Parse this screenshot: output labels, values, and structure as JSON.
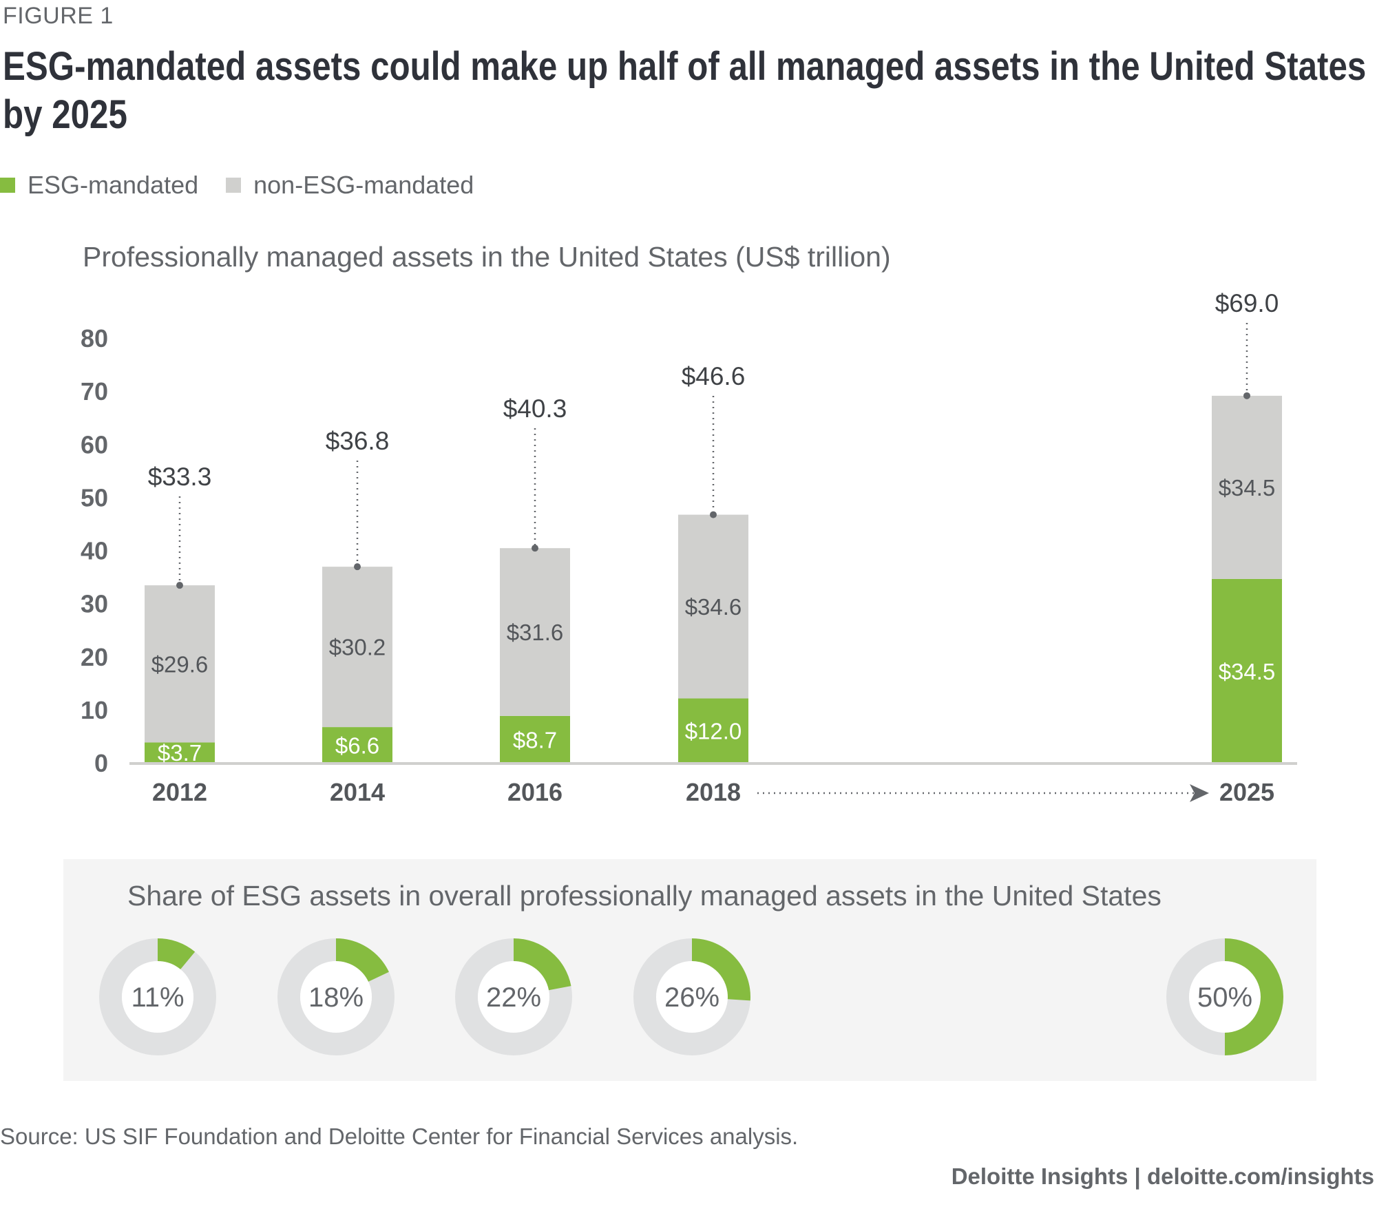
{
  "figure_label": "FIGURE 1",
  "title": "ESG-mandated assets could make up half of all managed assets in the United States by 2025",
  "legend": [
    {
      "label": "ESG-mandated",
      "color": "#86bc40"
    },
    {
      "label": "non-ESG-mandated",
      "color": "#d0d0ce"
    }
  ],
  "colors": {
    "esg": "#86bc40",
    "non_esg": "#d0d0ce",
    "donut_track": "#e0e1e2",
    "axis": "#d0d0ce",
    "text_dark": "#53565a",
    "panel_bg": "#f4f4f4"
  },
  "chart_data": [
    {
      "type": "bar",
      "stacked": true,
      "title": "Professionally managed assets in the United States (US$ trillion)",
      "xlabel": "",
      "ylabel": "",
      "categories": [
        "2012",
        "2014",
        "2016",
        "2018",
        "2025"
      ],
      "series": [
        {
          "name": "ESG-mandated",
          "values": [
            3.7,
            6.6,
            8.7,
            12.0,
            34.5
          ],
          "labels": [
            "$3.7",
            "$6.6",
            "$8.7",
            "$12.0",
            "$34.5"
          ]
        },
        {
          "name": "non-ESG-mandated",
          "values": [
            29.6,
            30.2,
            31.6,
            34.6,
            34.5
          ],
          "labels": [
            "$29.6",
            "$30.2",
            "$31.6",
            "$34.6",
            "$34.5"
          ]
        }
      ],
      "totals": [
        33.3,
        36.8,
        40.3,
        46.6,
        69.0
      ],
      "total_labels": [
        "$33.3",
        "$36.8",
        "$40.3",
        "$46.6",
        "$69.0"
      ],
      "ylim": [
        0,
        80
      ],
      "yticks": [
        0,
        10,
        20,
        30,
        40,
        50,
        60,
        70,
        80
      ],
      "grid": false,
      "legend_position": "top-left",
      "annotation": "dotted arrow from 2018 to 2025"
    },
    {
      "type": "pie",
      "variant": "donut",
      "title": "Share of ESG assets in overall professionally managed assets in the United States",
      "categories": [
        "2012",
        "2014",
        "2016",
        "2018",
        "2025"
      ],
      "values": [
        11,
        18,
        22,
        26,
        50
      ],
      "labels": [
        "11%",
        "18%",
        "22%",
        "26%",
        "50%"
      ]
    }
  ],
  "source": "Source: US SIF Foundation and Deloitte Center for Financial Services analysis.",
  "brand": "Deloitte Insights | deloitte.com/insights"
}
